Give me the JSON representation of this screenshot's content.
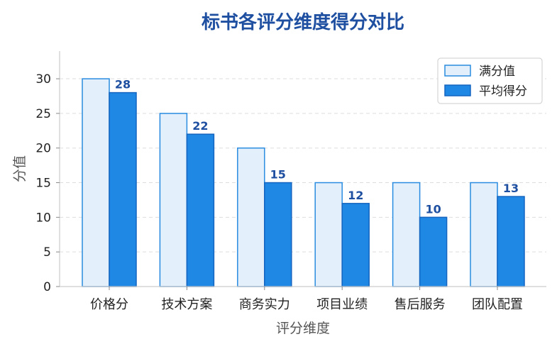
{
  "chart_data": {
    "type": "bar",
    "title": "标书各评分维度得分对比",
    "xlabel": "评分维度",
    "ylabel": "分值",
    "categories": [
      "价格分",
      "技术方案",
      "商务实力",
      "项目业绩",
      "售后服务",
      "团队配置"
    ],
    "series": [
      {
        "name": "满分值",
        "values": [
          30,
          25,
          20,
          15,
          15,
          15
        ],
        "color": "#e3f0fb",
        "stroke": "#2a8ce0"
      },
      {
        "name": "平均得分",
        "values": [
          28,
          22,
          15,
          12,
          10,
          13
        ],
        "color": "#1f88e5",
        "stroke": "#1565c0"
      }
    ],
    "data_labels_series": 1,
    "ylim": [
      0,
      34
    ],
    "yticks": [
      0,
      5,
      10,
      15,
      20,
      25,
      30
    ],
    "grid": "y-dashed",
    "legend_position": "top-right"
  }
}
